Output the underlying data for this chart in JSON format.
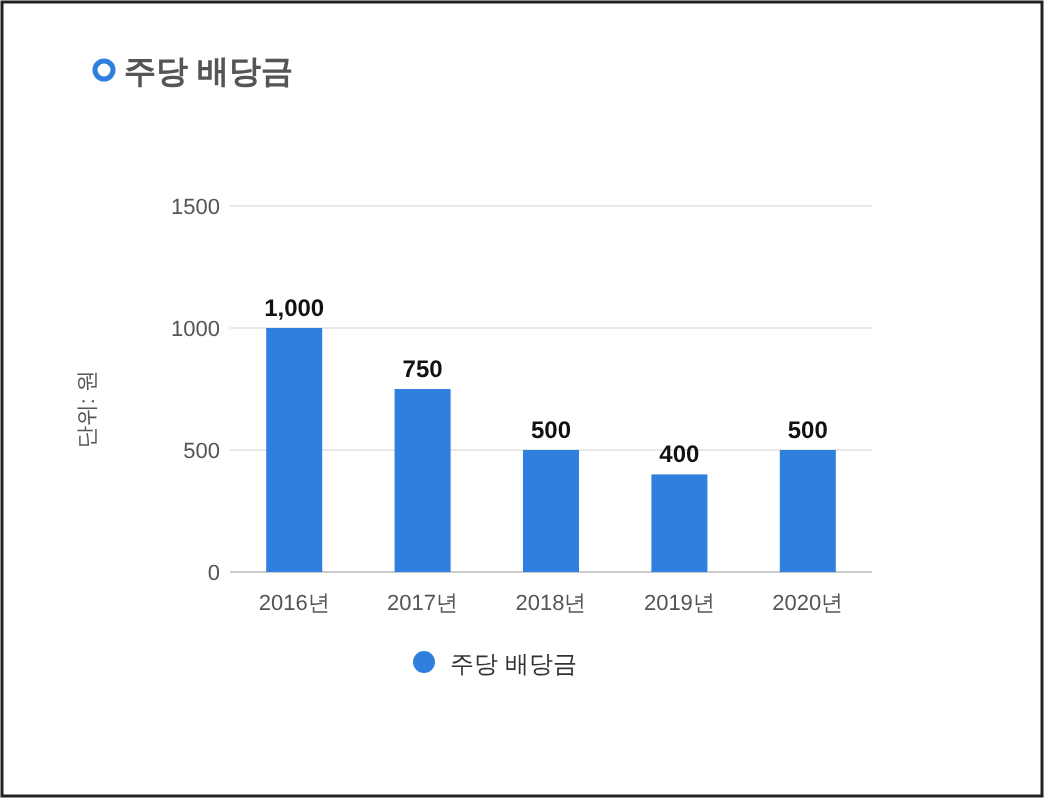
{
  "chart_data": {
    "type": "bar",
    "title": "주당 배당금",
    "ylabel": "단위: 원",
    "categories": [
      "2016년",
      "2017년",
      "2018년",
      "2019년",
      "2020년"
    ],
    "series": [
      {
        "name": "주당 배당금",
        "color": "#2e7fde",
        "values": [
          1000,
          750,
          500,
          400,
          500
        ],
        "value_labels": [
          "1,000",
          "750",
          "500",
          "400",
          "500"
        ]
      }
    ],
    "ylim": [
      0,
      1500
    ],
    "yticks": [
      0,
      500,
      1000,
      1500
    ],
    "grid": "y",
    "legend": "bottom"
  }
}
